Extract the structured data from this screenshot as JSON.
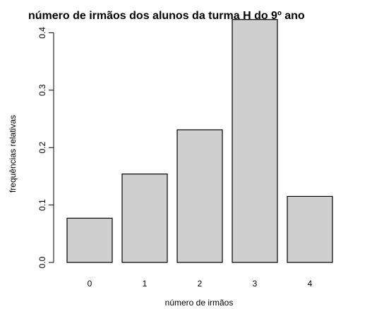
{
  "chart_data": {
    "type": "bar",
    "title": "número de irmãos dos alunos da turma H do 9º ano",
    "xlabel": "número de irmãos",
    "ylabel": "frequências relativas",
    "categories": [
      "0",
      "1",
      "2",
      "3",
      "4"
    ],
    "values": [
      0.077,
      0.154,
      0.231,
      0.423,
      0.115
    ],
    "ylim": [
      0,
      0.43
    ],
    "yticks": [
      0.0,
      0.1,
      0.2,
      0.3,
      0.4
    ],
    "ytick_labels": [
      "0.0",
      "0.1",
      "0.2",
      "0.3",
      "0.4"
    ],
    "grid": false,
    "colors": {
      "bar_fill": "#cfcfcf",
      "bar_stroke": "#000000"
    }
  }
}
